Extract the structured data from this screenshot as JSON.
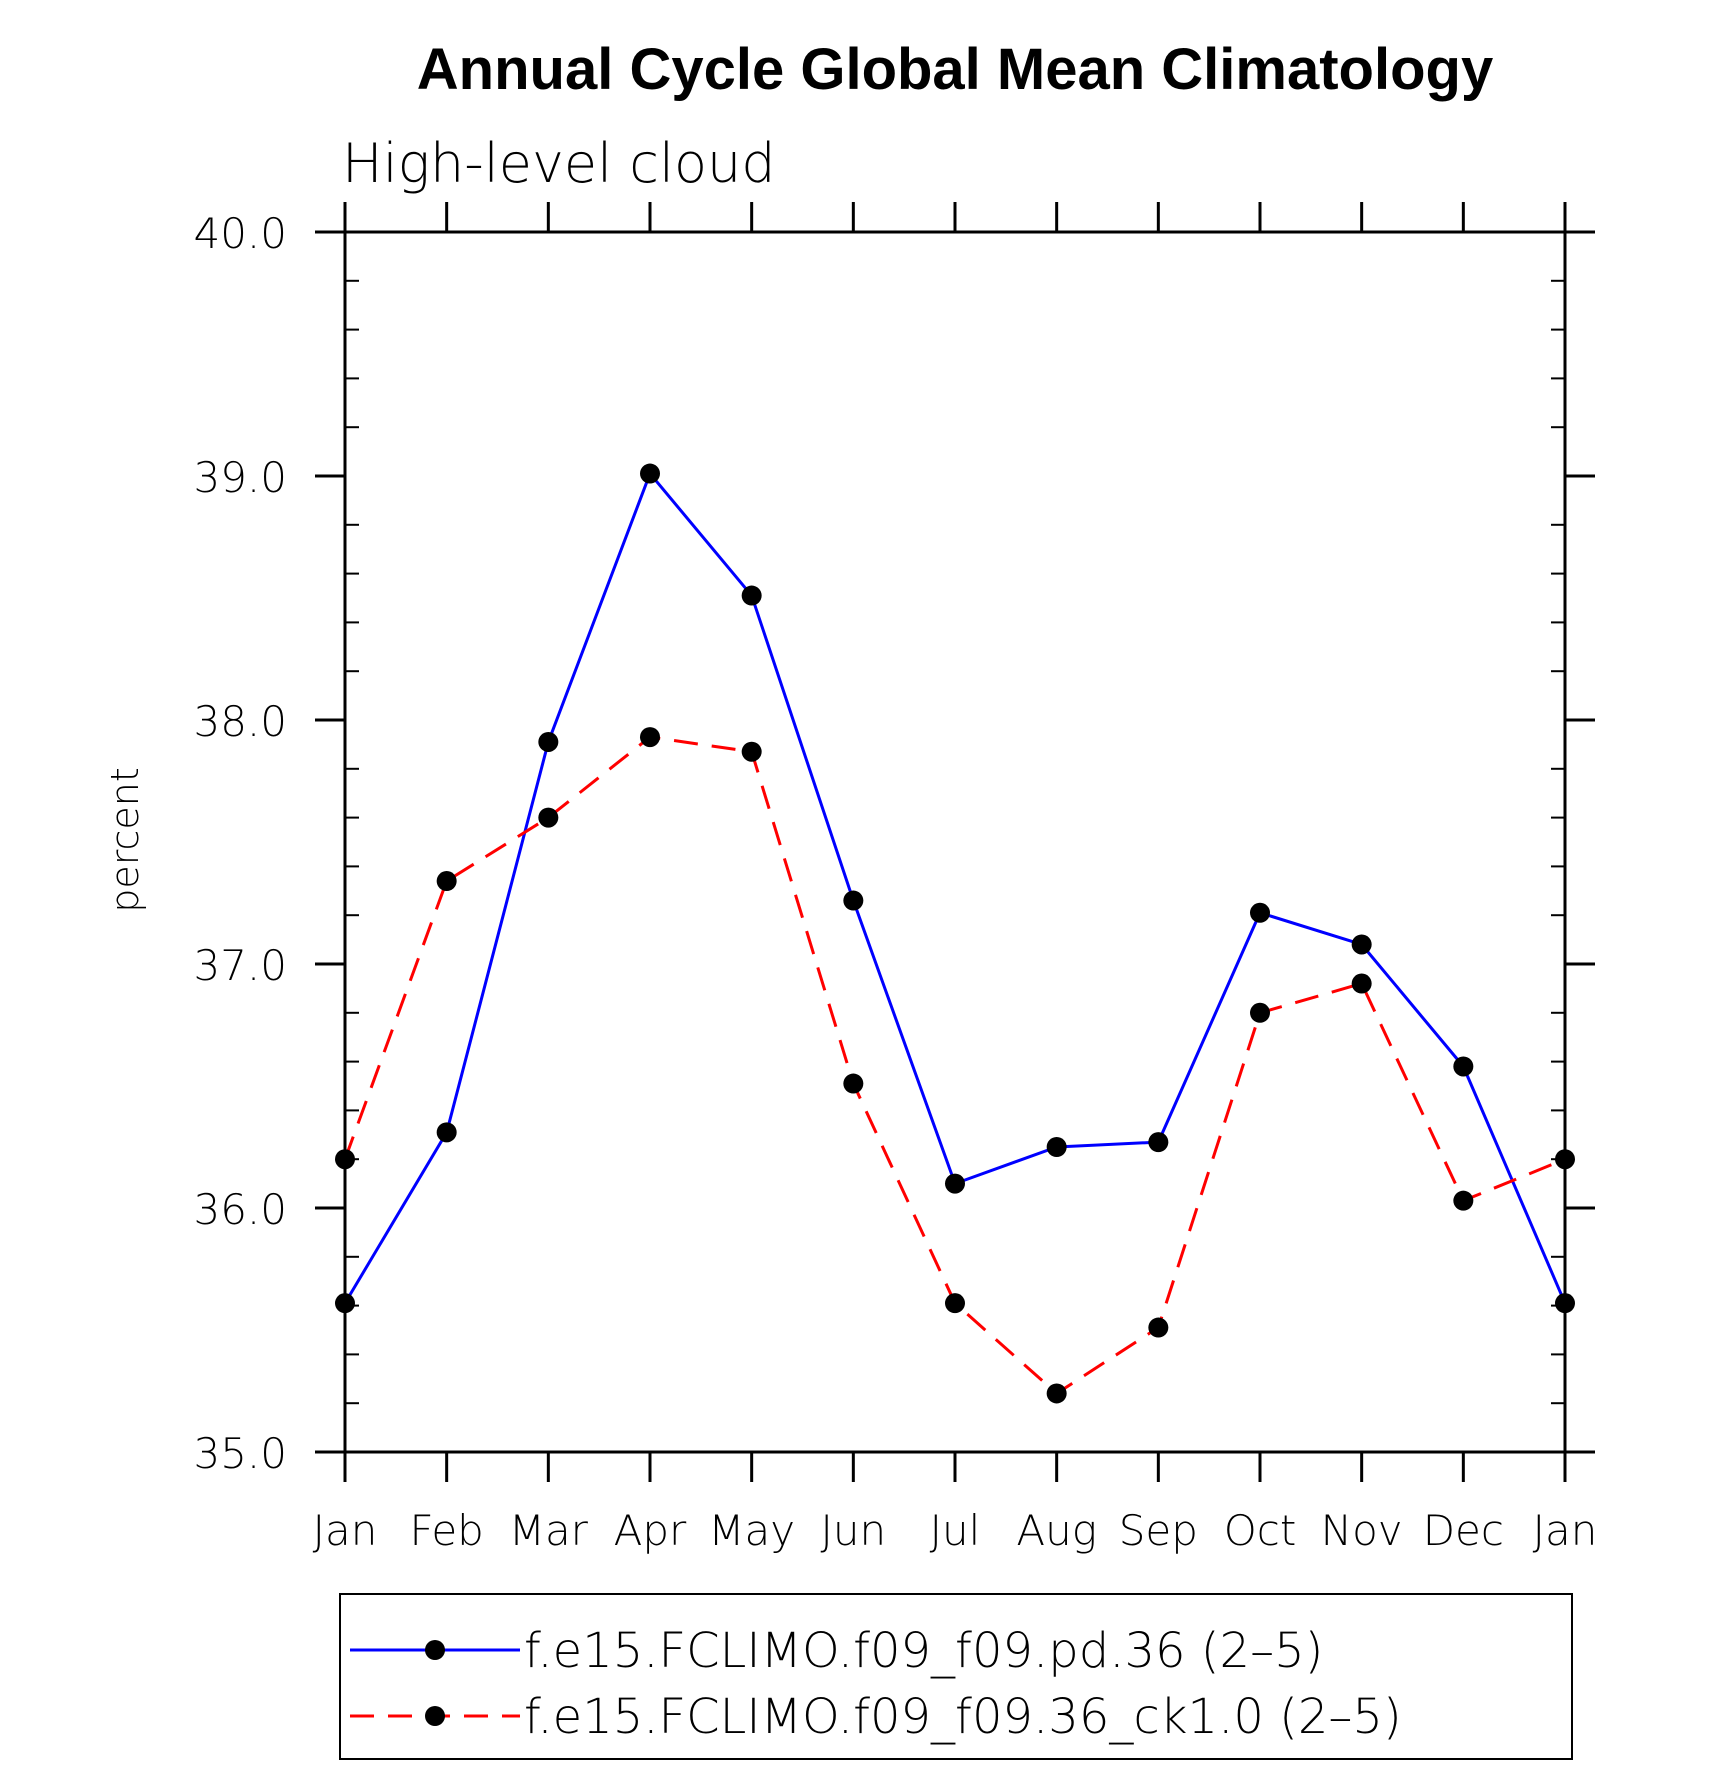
{
  "chart_data": {
    "type": "line",
    "title": "Annual Cycle Global Mean Climatology",
    "subtitle": "High-level cloud",
    "xlabel": "",
    "ylabel": "percent",
    "categories": [
      "Jan",
      "Feb",
      "Mar",
      "Apr",
      "May",
      "Jun",
      "Jul",
      "Aug",
      "Sep",
      "Oct",
      "Nov",
      "Dec",
      "Jan"
    ],
    "ylim": [
      35.0,
      40.0
    ],
    "y_ticks": [
      "35.0",
      "36.0",
      "37.0",
      "38.0",
      "39.0",
      "40.0"
    ],
    "grid": false,
    "legend_position": "bottom",
    "series": [
      {
        "name": "f.e15.FCLIMO.f09_f09.pd.36 (2–5)",
        "color": "#0000ff",
        "line_style": "solid",
        "marker": "filled-circle",
        "values": [
          35.61,
          36.31,
          37.91,
          39.01,
          38.51,
          37.26,
          36.1,
          36.25,
          36.27,
          37.21,
          37.08,
          36.58,
          35.61
        ]
      },
      {
        "name": "f.e15.FCLIMO.f09_f09.36_ck1.0 (2–5)",
        "color": "#ff0000",
        "line_style": "dashed",
        "marker": "filled-circle",
        "values": [
          36.2,
          37.34,
          37.6,
          37.93,
          37.87,
          36.51,
          35.61,
          35.24,
          35.51,
          36.8,
          36.92,
          36.03,
          36.2
        ]
      }
    ]
  }
}
